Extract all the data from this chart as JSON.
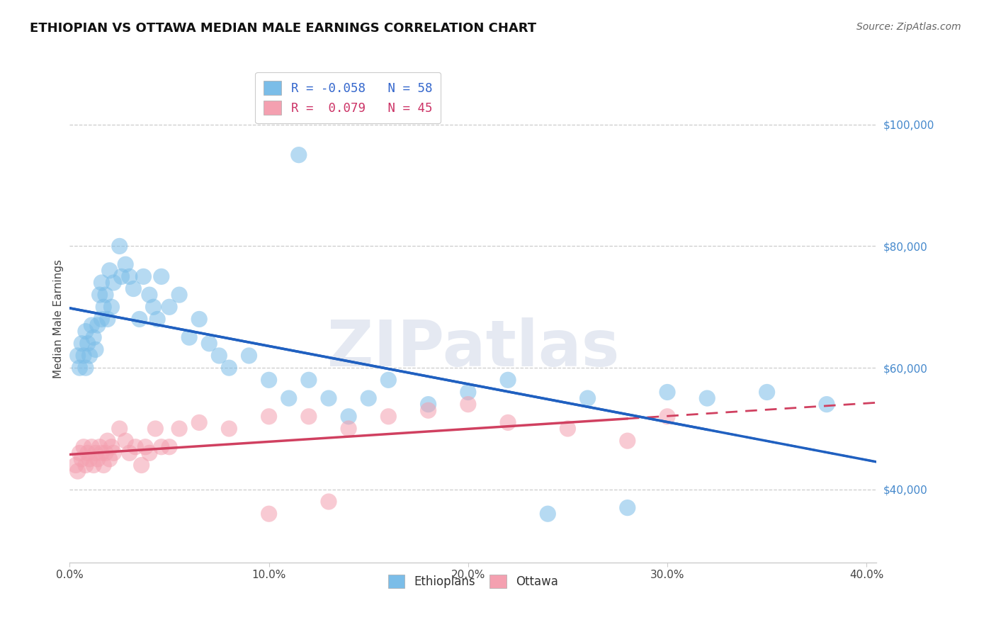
{
  "title": "ETHIOPIAN VS OTTAWA MEDIAN MALE EARNINGS CORRELATION CHART",
  "source": "Source: ZipAtlas.com",
  "ylabel": "Median Male Earnings",
  "blue_color": "#7bbde8",
  "pink_color": "#f4a0b0",
  "line_blue": "#2060c0",
  "line_pink": "#d04060",
  "watermark": "ZIPatlas",
  "eth_R": -0.058,
  "eth_N": 58,
  "ott_R": 0.079,
  "ott_N": 45,
  "ytick_vals": [
    40000,
    60000,
    80000,
    100000
  ],
  "ytick_labels": [
    "$40,000",
    "$60,000",
    "$80,000",
    "$100,000"
  ],
  "xtick_vals": [
    0.0,
    0.1,
    0.2,
    0.3,
    0.4
  ],
  "xtick_labels": [
    "0.0%",
    "10.0%",
    "20.0%",
    "30.0%",
    "40.0%"
  ],
  "xlim": [
    0.0,
    0.405
  ],
  "ylim": [
    28000,
    108000
  ],
  "eth_x": [
    0.004,
    0.005,
    0.006,
    0.007,
    0.008,
    0.008,
    0.009,
    0.01,
    0.011,
    0.012,
    0.013,
    0.014,
    0.015,
    0.016,
    0.016,
    0.017,
    0.018,
    0.019,
    0.02,
    0.021,
    0.022,
    0.025,
    0.026,
    0.028,
    0.03,
    0.032,
    0.035,
    0.037,
    0.04,
    0.042,
    0.044,
    0.046,
    0.05,
    0.055,
    0.06,
    0.065,
    0.07,
    0.075,
    0.08,
    0.09,
    0.1,
    0.11,
    0.12,
    0.13,
    0.14,
    0.15,
    0.16,
    0.18,
    0.2,
    0.22,
    0.24,
    0.26,
    0.28,
    0.3,
    0.32,
    0.35,
    0.38,
    0.115
  ],
  "eth_y": [
    62000,
    60000,
    64000,
    62000,
    66000,
    60000,
    64000,
    62000,
    67000,
    65000,
    63000,
    67000,
    72000,
    74000,
    68000,
    70000,
    72000,
    68000,
    76000,
    70000,
    74000,
    80000,
    75000,
    77000,
    75000,
    73000,
    68000,
    75000,
    72000,
    70000,
    68000,
    75000,
    70000,
    72000,
    65000,
    68000,
    64000,
    62000,
    60000,
    62000,
    58000,
    55000,
    58000,
    55000,
    52000,
    55000,
    58000,
    54000,
    56000,
    58000,
    36000,
    55000,
    37000,
    56000,
    55000,
    56000,
    54000,
    95000
  ],
  "ott_x": [
    0.003,
    0.004,
    0.005,
    0.006,
    0.007,
    0.008,
    0.009,
    0.01,
    0.011,
    0.012,
    0.013,
    0.014,
    0.015,
    0.016,
    0.017,
    0.018,
    0.019,
    0.02,
    0.021,
    0.022,
    0.025,
    0.028,
    0.03,
    0.033,
    0.036,
    0.038,
    0.04,
    0.043,
    0.046,
    0.05,
    0.055,
    0.065,
    0.08,
    0.1,
    0.12,
    0.14,
    0.16,
    0.18,
    0.2,
    0.25,
    0.28,
    0.3,
    0.22,
    0.1,
    0.13
  ],
  "ott_y": [
    44000,
    43000,
    46000,
    45000,
    47000,
    44000,
    46000,
    45000,
    47000,
    44000,
    46000,
    45000,
    47000,
    46000,
    44000,
    46000,
    48000,
    45000,
    47000,
    46000,
    50000,
    48000,
    46000,
    47000,
    44000,
    47000,
    46000,
    50000,
    47000,
    47000,
    50000,
    51000,
    50000,
    52000,
    52000,
    50000,
    52000,
    53000,
    54000,
    50000,
    48000,
    52000,
    51000,
    36000,
    38000
  ]
}
